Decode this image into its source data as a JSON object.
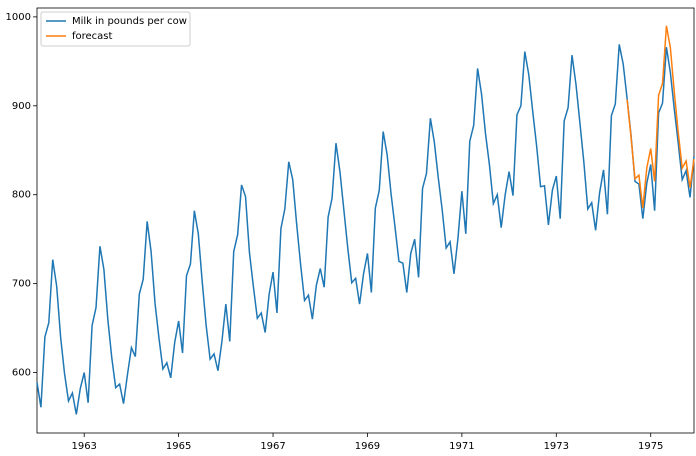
{
  "chart_data": {
    "type": "line",
    "x": [
      1962,
      1962.083,
      1962.167,
      1962.25,
      1962.333,
      1962.417,
      1962.5,
      1962.583,
      1962.667,
      1962.75,
      1962.833,
      1962.917,
      1963,
      1963.083,
      1963.167,
      1963.25,
      1963.333,
      1963.417,
      1963.5,
      1963.583,
      1963.667,
      1963.75,
      1963.833,
      1963.917,
      1964,
      1964.083,
      1964.167,
      1964.25,
      1964.333,
      1964.417,
      1964.5,
      1964.583,
      1964.667,
      1964.75,
      1964.833,
      1964.917,
      1965,
      1965.083,
      1965.167,
      1965.25,
      1965.333,
      1965.417,
      1965.5,
      1965.583,
      1965.667,
      1965.75,
      1965.833,
      1965.917,
      1966,
      1966.083,
      1966.167,
      1966.25,
      1966.333,
      1966.417,
      1966.5,
      1966.583,
      1966.667,
      1966.75,
      1966.833,
      1966.917,
      1967,
      1967.083,
      1967.167,
      1967.25,
      1967.333,
      1967.417,
      1967.5,
      1967.583,
      1967.667,
      1967.75,
      1967.833,
      1967.917,
      1968,
      1968.083,
      1968.167,
      1968.25,
      1968.333,
      1968.417,
      1968.5,
      1968.583,
      1968.667,
      1968.75,
      1968.833,
      1968.917,
      1969,
      1969.083,
      1969.167,
      1969.25,
      1969.333,
      1969.417,
      1969.5,
      1969.583,
      1969.667,
      1969.75,
      1969.833,
      1969.917,
      1970,
      1970.083,
      1970.167,
      1970.25,
      1970.333,
      1970.417,
      1970.5,
      1970.583,
      1970.667,
      1970.75,
      1970.833,
      1970.917,
      1971,
      1971.083,
      1971.167,
      1971.25,
      1971.333,
      1971.417,
      1971.5,
      1971.583,
      1971.667,
      1971.75,
      1971.833,
      1971.917,
      1972,
      1972.083,
      1972.167,
      1972.25,
      1972.333,
      1972.417,
      1972.5,
      1972.583,
      1972.667,
      1972.75,
      1972.833,
      1972.917,
      1973,
      1973.083,
      1973.167,
      1973.25,
      1973.333,
      1973.417,
      1973.5,
      1973.583,
      1973.667,
      1973.75,
      1973.833,
      1973.917,
      1974,
      1974.083,
      1974.167,
      1974.25,
      1974.333,
      1974.417,
      1974.5,
      1974.583,
      1974.667,
      1974.75,
      1974.833,
      1974.917,
      1975,
      1975.083,
      1975.167,
      1975.25,
      1975.333,
      1975.417,
      1975.5,
      1975.583,
      1975.667,
      1975.75,
      1975.833,
      1975.917
    ],
    "series": [
      {
        "name": "Milk in pounds per cow",
        "color": "#1f77b4",
        "values": [
          589,
          561,
          640,
          656,
          727,
          697,
          640,
          599,
          568,
          577,
          553,
          582,
          600,
          566,
          653,
          673,
          742,
          716,
          660,
          617,
          583,
          587,
          565,
          598,
          628,
          618,
          688,
          705,
          770,
          736,
          678,
          639,
          604,
          611,
          594,
          634,
          658,
          622,
          709,
          722,
          782,
          756,
          702,
          653,
          615,
          621,
          602,
          635,
          677,
          635,
          736,
          755,
          811,
          798,
          735,
          697,
          661,
          667,
          645,
          688,
          713,
          667,
          762,
          784,
          837,
          817,
          767,
          722,
          681,
          687,
          660,
          698,
          717,
          696,
          775,
          796,
          858,
          826,
          783,
          740,
          701,
          706,
          677,
          711,
          734,
          690,
          785,
          805,
          871,
          845,
          801,
          764,
          725,
          723,
          690,
          734,
          750,
          707,
          807,
          824,
          886,
          859,
          819,
          783,
          740,
          747,
          711,
          751,
          804,
          756,
          860,
          878,
          942,
          913,
          869,
          834,
          790,
          800,
          763,
          800,
          826,
          799,
          890,
          900,
          961,
          935,
          894,
          855,
          809,
          810,
          766,
          805,
          821,
          773,
          883,
          898,
          957,
          924,
          881,
          837,
          784,
          791,
          760,
          802,
          828,
          778,
          889,
          902,
          969,
          947,
          908,
          867,
          815,
          812,
          773,
          813,
          834,
          782,
          892,
          903,
          966,
          937,
          896,
          858,
          817,
          827,
          797,
          843
        ]
      },
      {
        "name": "forecast",
        "color": "#ff7f0e",
        "values": [
          null,
          null,
          null,
          null,
          null,
          null,
          null,
          null,
          null,
          null,
          null,
          null,
          null,
          null,
          null,
          null,
          null,
          null,
          null,
          null,
          null,
          null,
          null,
          null,
          null,
          null,
          null,
          null,
          null,
          null,
          null,
          null,
          null,
          null,
          null,
          null,
          null,
          null,
          null,
          null,
          null,
          null,
          null,
          null,
          null,
          null,
          null,
          null,
          null,
          null,
          null,
          null,
          null,
          null,
          null,
          null,
          null,
          null,
          null,
          null,
          null,
          null,
          null,
          null,
          null,
          null,
          null,
          null,
          null,
          null,
          null,
          null,
          null,
          null,
          null,
          null,
          null,
          null,
          null,
          null,
          null,
          null,
          null,
          null,
          null,
          null,
          null,
          null,
          null,
          null,
          null,
          null,
          null,
          null,
          null,
          null,
          null,
          null,
          null,
          null,
          null,
          null,
          null,
          null,
          null,
          null,
          null,
          null,
          null,
          null,
          null,
          null,
          null,
          null,
          null,
          null,
          null,
          null,
          null,
          null,
          null,
          null,
          null,
          null,
          null,
          null,
          null,
          null,
          null,
          null,
          null,
          null,
          null,
          null,
          null,
          null,
          null,
          null,
          null,
          null,
          null,
          null,
          null,
          null,
          null,
          null,
          null,
          null,
          null,
          null,
          907,
          865,
          818,
          822,
          785,
          830,
          852,
          815,
          912,
          925,
          990,
          965,
          915,
          870,
          830,
          838,
          808,
          840
        ]
      }
    ],
    "xlim": [
      1962,
      1975.917
    ],
    "xticks": [
      1963,
      1965,
      1967,
      1969,
      1971,
      1973,
      1975
    ],
    "ylim": [
      532,
      1010
    ],
    "yticks": [
      600,
      700,
      800,
      900,
      1000
    ],
    "legend": "upper left"
  }
}
